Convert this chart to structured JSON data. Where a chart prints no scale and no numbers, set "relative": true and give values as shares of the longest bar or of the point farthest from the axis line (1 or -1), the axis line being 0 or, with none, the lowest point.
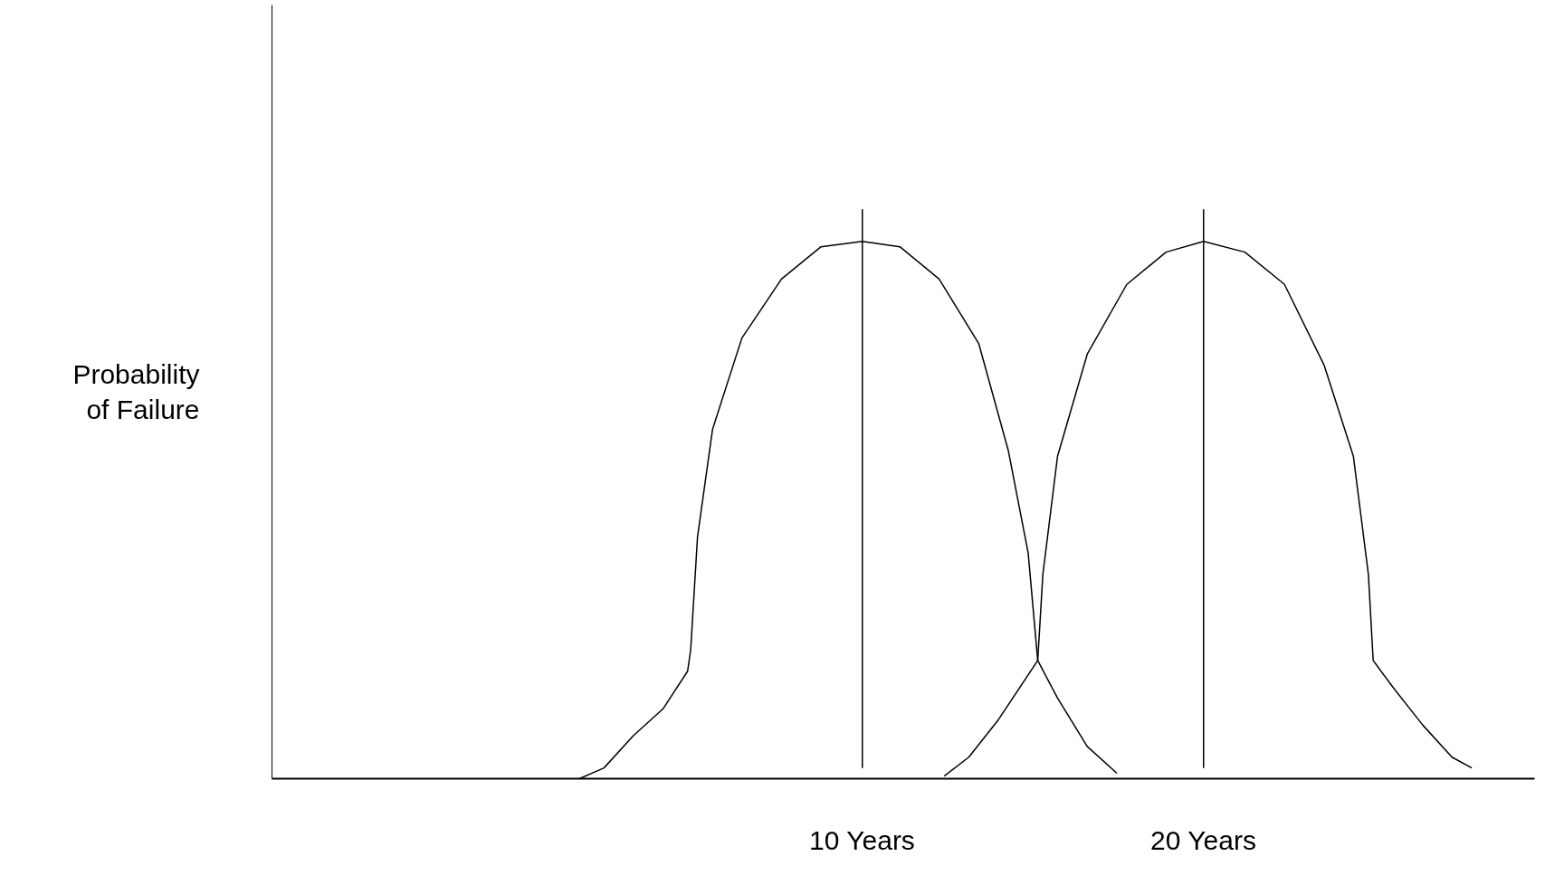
{
  "chart_data": {
    "type": "line",
    "relative": true,
    "ylabel": "Probability\nof Failure",
    "xlim": [
      -7.3,
      29.7
    ],
    "xticks": [
      {
        "value": 10,
        "label": "10 Years"
      },
      {
        "value": 20,
        "label": "20 Years"
      }
    ],
    "grid": false,
    "marker": "none",
    "line_style": "solid",
    "series": [
      {
        "color": "#000000",
        "x": [
          1.71,
          2.43,
          3.29,
          4.16,
          4.88,
          4.97,
          5.17,
          5.61,
          6.47,
          7.63,
          8.79,
          10.0,
          11.1,
          12.25,
          13.41,
          14.28,
          14.86,
          15.14,
          15.72,
          16.59,
          17.46
        ],
        "values": [
          0,
          0.02,
          0.08,
          0.13,
          0.2,
          0.24,
          0.45,
          0.65,
          0.82,
          0.93,
          0.99,
          1.0,
          0.99,
          0.93,
          0.81,
          0.61,
          0.42,
          0.22,
          0.15,
          0.06,
          0.01
        ]
      },
      {
        "color": "#000000",
        "x": [
          12.4,
          13.12,
          13.99,
          15.14,
          15.29,
          15.72,
          16.59,
          17.75,
          18.9,
          20.0,
          21.21,
          22.37,
          23.53,
          24.39,
          24.83,
          24.97,
          25.55,
          26.42,
          27.28,
          27.86
        ],
        "values": [
          0.005,
          0.04,
          0.11,
          0.22,
          0.38,
          0.6,
          0.79,
          0.92,
          0.98,
          1.0,
          0.98,
          0.92,
          0.77,
          0.6,
          0.38,
          0.22,
          0.17,
          0.1,
          0.04,
          0.02
        ]
      }
    ],
    "ref_lines": [
      {
        "axis": "x",
        "value": 10,
        "color": "#000000"
      },
      {
        "axis": "x",
        "value": 20,
        "color": "#000000"
      }
    ]
  }
}
